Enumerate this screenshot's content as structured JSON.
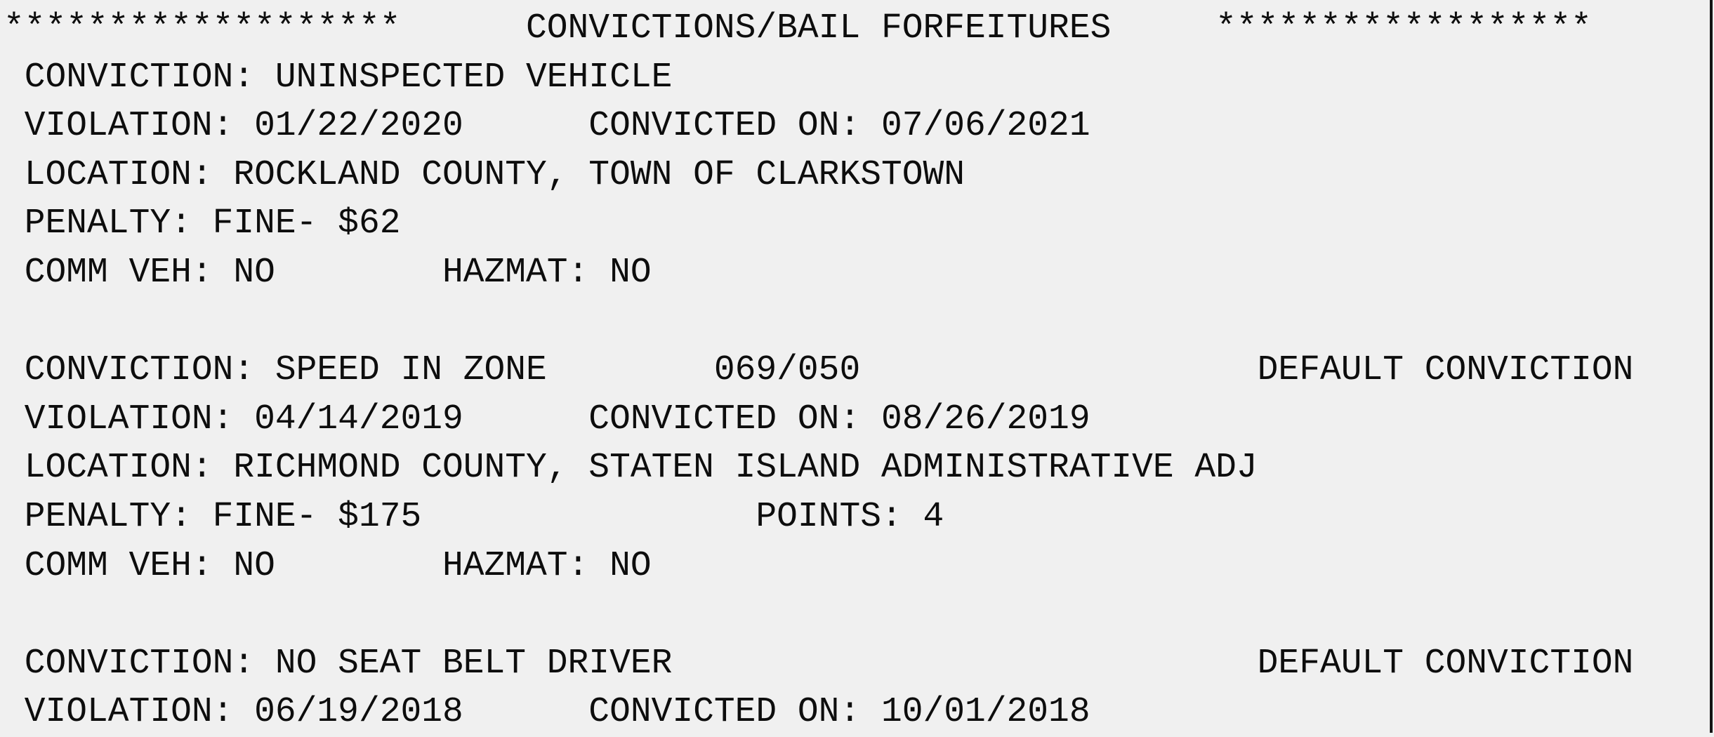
{
  "page": {
    "background_color": "#f0f0f0",
    "text_color": "#0d0d0d",
    "right_border_color": "#141414"
  },
  "header": {
    "left_stars": "*******************",
    "title": "CONVICTIONS/BAIL FORFEITURES",
    "right_stars": "******************"
  },
  "records": [
    {
      "conviction": "UNINSPECTED VEHICLE",
      "violation_date": "01/22/2020",
      "convicted_on": "07/06/2021",
      "location": "ROCKLAND COUNTY, TOWN OF CLARKSTOWN",
      "penalty": "FINE- $62",
      "comm_veh": "NO",
      "hazmat": "NO"
    },
    {
      "conviction": "SPEED IN ZONE",
      "speed": "069/050",
      "flag": "DEFAULT CONVICTION",
      "violation_date": "04/14/2019",
      "convicted_on": "08/26/2019",
      "location": "RICHMOND COUNTY, STATEN ISLAND ADMINISTRATIVE ADJ",
      "penalty": "FINE- $175",
      "points": "4",
      "comm_veh": "NO",
      "hazmat": "NO"
    },
    {
      "conviction": "NO SEAT BELT DRIVER",
      "flag": "DEFAULT CONVICTION",
      "violation_date": "06/19/2018",
      "convicted_on": "10/01/2018"
    }
  ],
  "lines": [
    "*******************      CONVICTIONS/BAIL FORFEITURES     ******************",
    " CONVICTION: UNINSPECTED VEHICLE",
    " VIOLATION: 01/22/2020      CONVICTED ON: 07/06/2021",
    " LOCATION: ROCKLAND COUNTY, TOWN OF CLARKSTOWN",
    " PENALTY: FINE- $62",
    " COMM VEH: NO        HAZMAT: NO",
    "",
    " CONVICTION: SPEED IN ZONE        069/050                   DEFAULT CONVICTION",
    " VIOLATION: 04/14/2019      CONVICTED ON: 08/26/2019",
    " LOCATION: RICHMOND COUNTY, STATEN ISLAND ADMINISTRATIVE ADJ",
    " PENALTY: FINE- $175                POINTS: 4",
    " COMM VEH: NO        HAZMAT: NO",
    "",
    " CONVICTION: NO SEAT BELT DRIVER                            DEFAULT CONVICTION",
    " VIOLATION: 06/19/2018      CONVICTED ON: 10/01/2018"
  ]
}
